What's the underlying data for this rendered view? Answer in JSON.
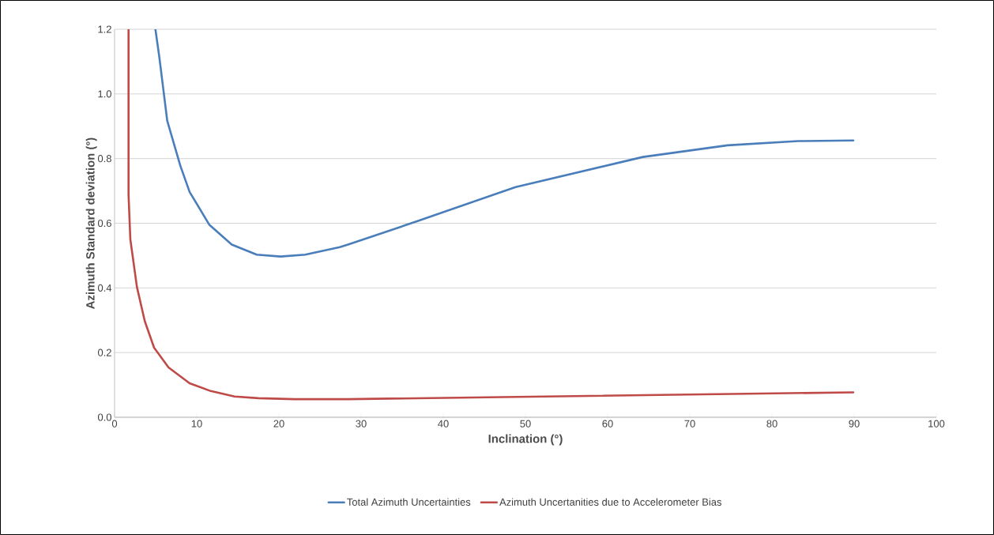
{
  "chart_data": {
    "type": "line",
    "xlabel": "Inclination (°)",
    "ylabel": "Azimuth Standard deviation (°)",
    "xlim": [
      0,
      100
    ],
    "xticks": [
      0,
      10,
      20,
      30,
      40,
      50,
      60,
      70,
      80,
      90,
      100
    ],
    "ylim": [
      0,
      1.2
    ],
    "yticks": [
      {
        "value": 0,
        "label": "0.0"
      },
      {
        "value": 0.2,
        "label": "0.2"
      },
      {
        "value": 0.4,
        "label": "0.4"
      },
      {
        "value": 0.6,
        "label": "0.6"
      },
      {
        "value": 0.8,
        "label": "0.8"
      },
      {
        "value": 1.0,
        "label": "1.0"
      },
      {
        "value": 1.2,
        "label": "1.2"
      }
    ],
    "grid": "y",
    "legend": "bottom",
    "marker": "none",
    "line_style": "solid",
    "series": [
      {
        "name": "Total Azimuth Uncertainties",
        "color": "#4a7ebb",
        "x": [
          4.97,
          5.45,
          6.41,
          8.0,
          9.13,
          11.54,
          14.26,
          17.3,
          20.2,
          23.2,
          27.4,
          28.4,
          36.8,
          48.8,
          64.3,
          74.6,
          83.2,
          89.9
        ],
        "values": [
          1.2,
          1.113,
          0.917,
          0.778,
          0.697,
          0.595,
          0.534,
          0.503,
          0.497,
          0.503,
          0.526,
          0.534,
          0.606,
          0.712,
          0.805,
          0.841,
          0.854,
          0.856
        ]
      },
      {
        "name": "Azimuth Uncertanities due to Accelerometer Bias",
        "color": "#be4b48",
        "x": [
          1.7,
          1.7,
          1.92,
          2.72,
          3.68,
          4.81,
          6.57,
          9.13,
          11.7,
          14.6,
          17.5,
          21.9,
          28.4,
          89.9
        ],
        "values": [
          1.2,
          0.689,
          0.55,
          0.403,
          0.297,
          0.215,
          0.154,
          0.105,
          0.081,
          0.064,
          0.059,
          0.056,
          0.056,
          0.077
        ]
      }
    ]
  }
}
